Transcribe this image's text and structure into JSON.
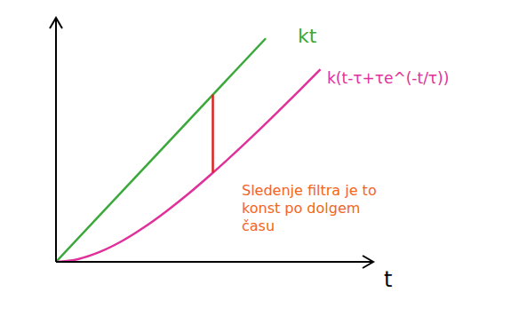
{
  "chart_data": {
    "type": "line",
    "xlabel": "t",
    "xlim": [
      0,
      3.6
    ],
    "ylim": [
      0,
      2.6
    ],
    "tick_labels": false,
    "grid": false,
    "series": [
      {
        "name": "kt",
        "color": "#3aa83a",
        "x": [
          0,
          2.38
        ],
        "values": [
          0,
          2.38
        ]
      },
      {
        "name": "k(t-τ+τe^(-t/τ))",
        "color": "#e0309a",
        "x": [
          0,
          0.25,
          0.5,
          0.75,
          1,
          1.25,
          1.5,
          1.75,
          2,
          2.25,
          2.5,
          2.75,
          3.0
        ],
        "values": [
          0,
          0.029,
          0.107,
          0.222,
          0.368,
          0.537,
          0.723,
          0.924,
          1.135,
          1.355,
          1.582,
          1.814,
          2.05
        ]
      },
      {
        "color": "#e02020",
        "x": [
          1.78,
          1.78
        ],
        "values": [
          1.78,
          0.95
        ]
      }
    ],
    "annotation": {
      "text": "Sledenje filtra je to konst po dolgem času",
      "color": "#f26522"
    }
  }
}
